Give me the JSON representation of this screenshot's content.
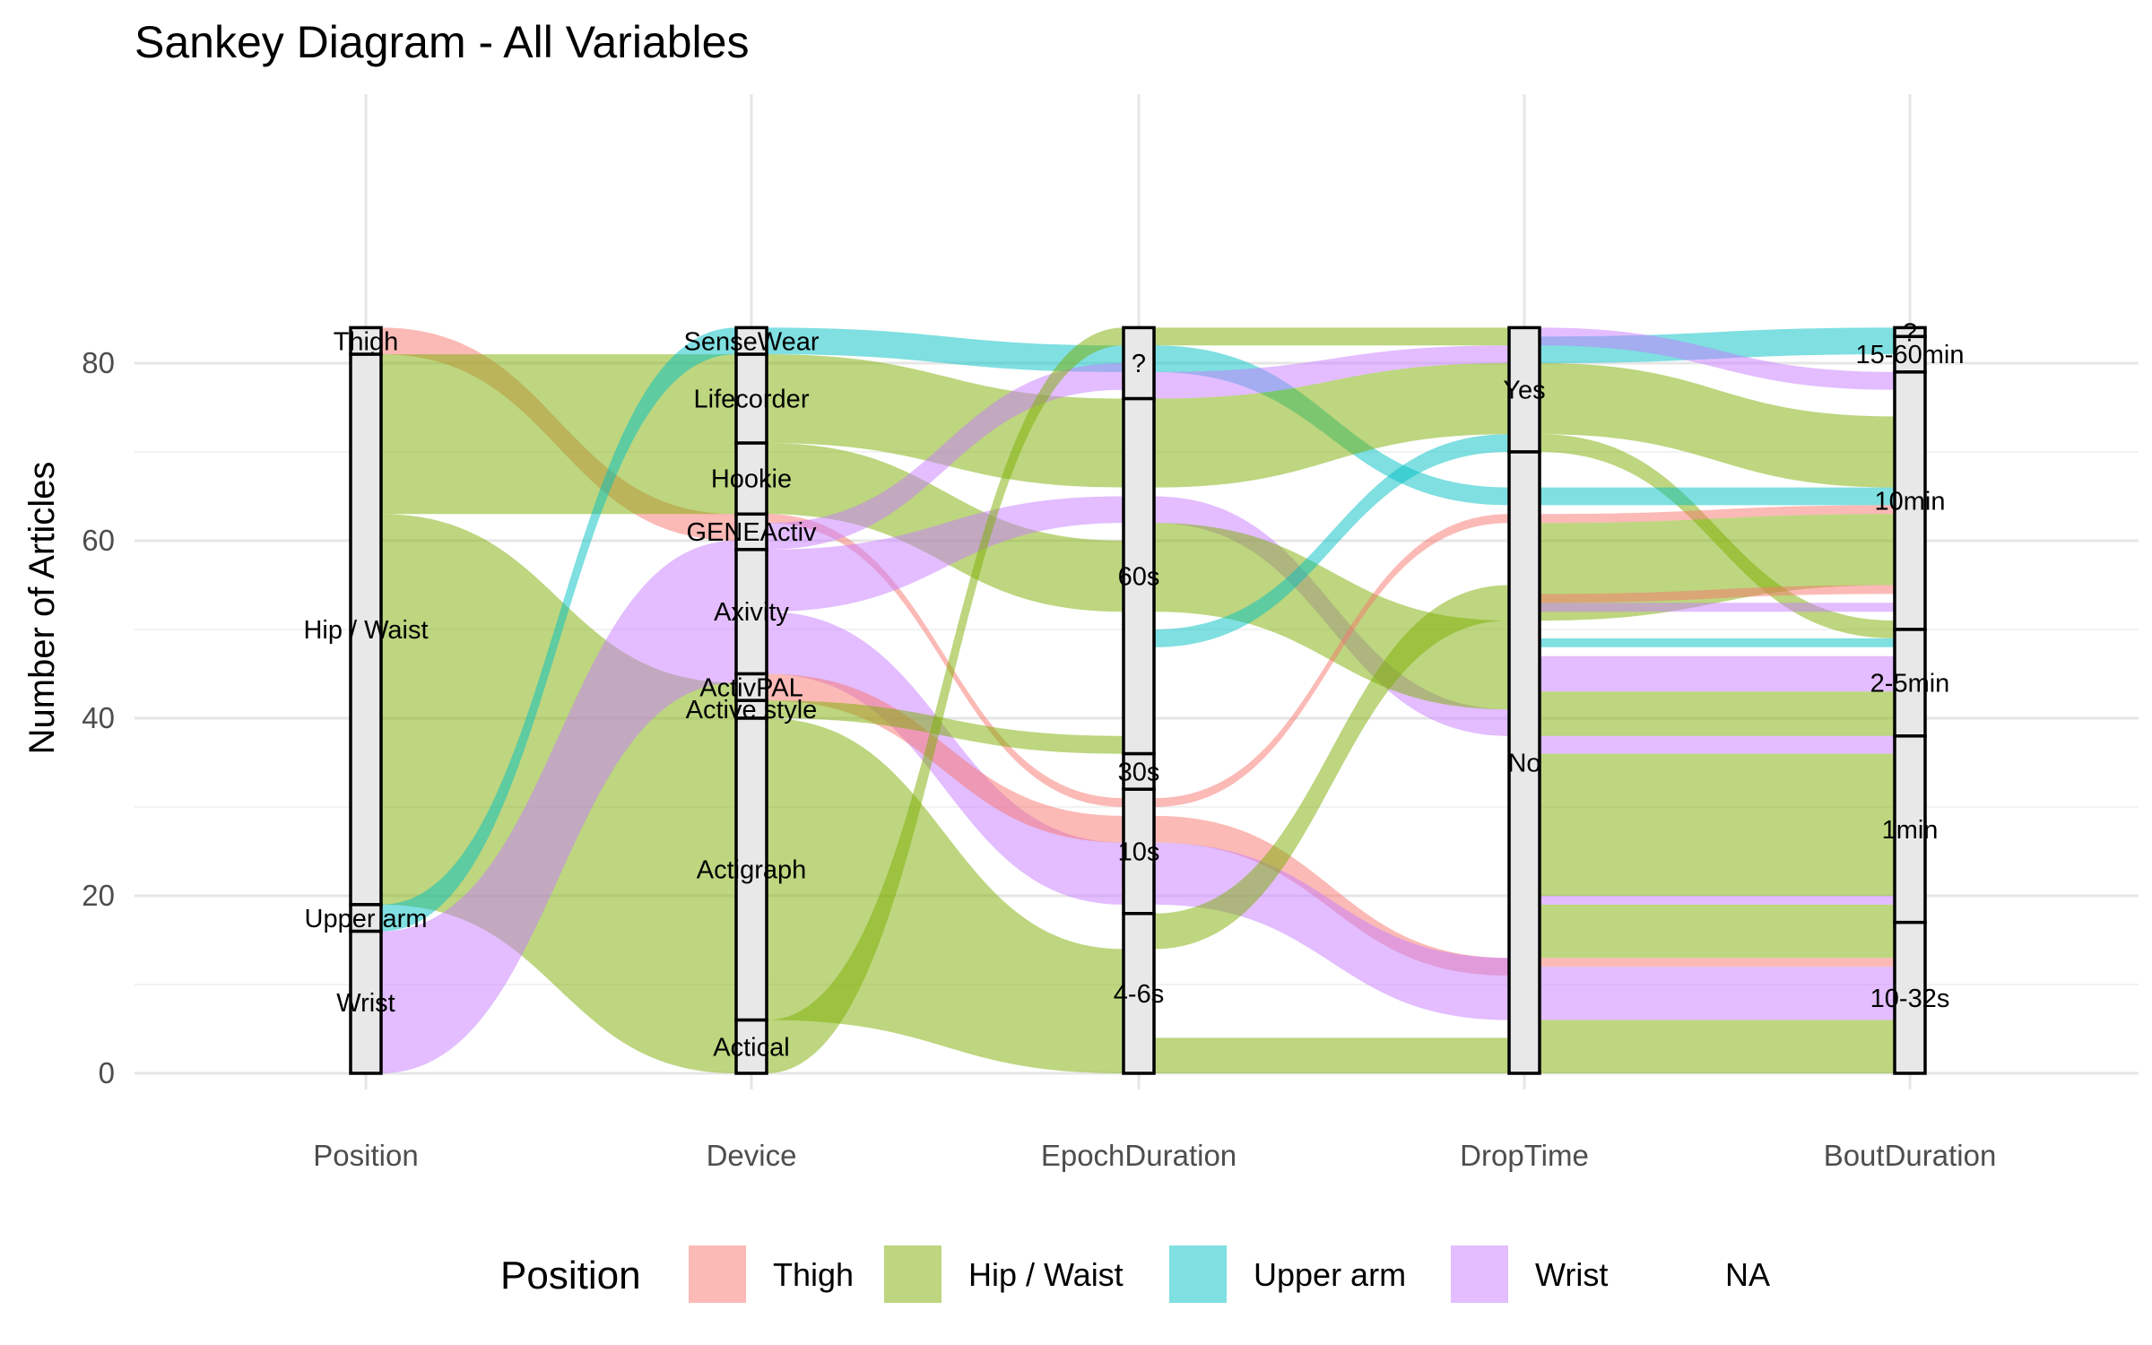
{
  "chart_data": {
    "type": "sankey",
    "title": "Sankey Diagram - All Variables",
    "ylabel": "Number of Articles",
    "xlabel": "",
    "ylim": [
      0,
      84
    ],
    "yticks": [
      0,
      20,
      40,
      60,
      80
    ],
    "grid": true,
    "legend_position": "bottom",
    "legend_title": "Position",
    "legend": [
      {
        "name": "Thigh",
        "color": "#F8766D"
      },
      {
        "name": "Hip / Waist",
        "color": "#7CAE00"
      },
      {
        "name": "Upper arm",
        "color": "#00BFC4"
      },
      {
        "name": "Wrist",
        "color": "#C77CFF"
      },
      {
        "name": "NA",
        "color": null
      }
    ],
    "axes": [
      {
        "name": "Position",
        "strata": [
          {
            "label": "Thigh",
            "min": 81,
            "max": 84
          },
          {
            "label": "Hip / Waist",
            "min": 19,
            "max": 81
          },
          {
            "label": "Upper arm",
            "min": 16,
            "max": 19
          },
          {
            "label": "Wrist",
            "min": 0,
            "max": 16
          }
        ]
      },
      {
        "name": "Device",
        "strata": [
          {
            "label": "SenseWear",
            "min": 81,
            "max": 84
          },
          {
            "label": "Lifecorder",
            "min": 71,
            "max": 81
          },
          {
            "label": "Hookie",
            "min": 63,
            "max": 71
          },
          {
            "label": "GENEActiv",
            "min": 59,
            "max": 63
          },
          {
            "label": "Axivity",
            "min": 45,
            "max": 59
          },
          {
            "label": "ActivPAL",
            "min": 42,
            "max": 45
          },
          {
            "label": "Active style",
            "min": 40,
            "max": 42
          },
          {
            "label": "Actigraph",
            "min": 6,
            "max": 40
          },
          {
            "label": "Actical",
            "min": 0,
            "max": 6
          }
        ]
      },
      {
        "name": "EpochDuration",
        "strata": [
          {
            "label": "?",
            "min": 76,
            "max": 84
          },
          {
            "label": "60s",
            "min": 36,
            "max": 76
          },
          {
            "label": "30s",
            "min": 32,
            "max": 36
          },
          {
            "label": "10s",
            "min": 18,
            "max": 32
          },
          {
            "label": "4-6s",
            "min": 0,
            "max": 18
          }
        ]
      },
      {
        "name": "DropTime",
        "strata": [
          {
            "label": "Yes",
            "min": 70,
            "max": 84
          },
          {
            "label": "No",
            "min": 0,
            "max": 70
          }
        ]
      },
      {
        "name": "BoutDuration",
        "strata": [
          {
            "label": "?",
            "min": 83,
            "max": 84
          },
          {
            "label": "15-60min",
            "min": 79,
            "max": 83
          },
          {
            "label": "10min",
            "min": 50,
            "max": 79
          },
          {
            "label": "2-5min",
            "min": 38,
            "max": 50
          },
          {
            "label": "1min",
            "min": 17,
            "max": 38
          },
          {
            "label": "10-32s",
            "min": 0,
            "max": 17
          }
        ]
      }
    ],
    "flows": [
      {
        "axis": 0,
        "group": "Thigh",
        "from": [
          81,
          84
        ],
        "to": [
          60,
          63
        ]
      },
      {
        "axis": 0,
        "group": "Hip / Waist",
        "from": [
          63,
          81
        ],
        "to": [
          63,
          81
        ]
      },
      {
        "axis": 0,
        "group": "Hip / Waist",
        "from": [
          19,
          63
        ],
        "to": [
          0,
          44
        ]
      },
      {
        "axis": 0,
        "group": "Upper arm",
        "from": [
          16,
          19
        ],
        "to": [
          81,
          84
        ]
      },
      {
        "axis": 0,
        "group": "Wrist",
        "from": [
          0,
          16
        ],
        "to": [
          44,
          60
        ]
      },
      {
        "axis": 1,
        "group": "Upper arm",
        "from": [
          81,
          84
        ],
        "to": [
          79,
          82
        ]
      },
      {
        "axis": 1,
        "group": "Hip / Waist",
        "from": [
          71,
          81
        ],
        "to": [
          66,
          76
        ]
      },
      {
        "axis": 1,
        "group": "Hip / Waist",
        "from": [
          63,
          71
        ],
        "to": [
          52,
          60
        ]
      },
      {
        "axis": 1,
        "group": "Thigh",
        "from": [
          62,
          63
        ],
        "to": [
          30,
          31
        ]
      },
      {
        "axis": 1,
        "group": "Wrist",
        "from": [
          59,
          62
        ],
        "to": [
          77,
          80
        ]
      },
      {
        "axis": 1,
        "group": "Wrist",
        "from": [
          52,
          59
        ],
        "to": [
          62,
          65
        ]
      },
      {
        "axis": 1,
        "group": "Wrist",
        "from": [
          45,
          52
        ],
        "to": [
          19,
          26
        ]
      },
      {
        "axis": 1,
        "group": "Thigh",
        "from": [
          42,
          45
        ],
        "to": [
          26,
          29
        ]
      },
      {
        "axis": 1,
        "group": "Hip / Waist",
        "from": [
          40,
          42
        ],
        "to": [
          36,
          38
        ]
      },
      {
        "axis": 1,
        "group": "Hip / Waist",
        "from": [
          6,
          40
        ],
        "to": [
          0,
          14
        ]
      },
      {
        "axis": 1,
        "group": "Hip / Waist",
        "from": [
          0,
          6
        ],
        "to": [
          82,
          84
        ]
      },
      {
        "axis": 2,
        "group": "Hip / Waist",
        "from": [
          82,
          84
        ],
        "to": [
          82,
          84
        ]
      },
      {
        "axis": 2,
        "group": "Upper arm",
        "from": [
          79,
          82
        ],
        "to": [
          64,
          66
        ]
      },
      {
        "axis": 2,
        "group": "Wrist",
        "from": [
          76,
          79
        ],
        "to": [
          80,
          82
        ]
      },
      {
        "axis": 2,
        "group": "Hip / Waist",
        "from": [
          66,
          76
        ],
        "to": [
          72,
          80
        ]
      },
      {
        "axis": 2,
        "group": "Wrist",
        "from": [
          62,
          65
        ],
        "to": [
          38,
          41
        ]
      },
      {
        "axis": 2,
        "group": "Hip / Waist",
        "from": [
          52,
          62
        ],
        "to": [
          41,
          51
        ]
      },
      {
        "axis": 2,
        "group": "Upper arm",
        "from": [
          48,
          50
        ],
        "to": [
          70,
          72
        ]
      },
      {
        "axis": 2,
        "group": "Thigh",
        "from": [
          30,
          31
        ],
        "to": [
          62,
          63
        ]
      },
      {
        "axis": 2,
        "group": "Thigh",
        "from": [
          26,
          29
        ],
        "to": [
          11,
          13
        ]
      },
      {
        "axis": 2,
        "group": "Wrist",
        "from": [
          19,
          26
        ],
        "to": [
          6,
          13
        ]
      },
      {
        "axis": 2,
        "group": "Hip / Waist",
        "from": [
          14,
          18
        ],
        "to": [
          51,
          55
        ]
      },
      {
        "axis": 2,
        "group": "Hip / Waist",
        "from": [
          0,
          4
        ],
        "to": [
          0,
          4
        ]
      },
      {
        "axis": 3,
        "group": "Upper arm",
        "from": [
          80,
          83
        ],
        "to": [
          81,
          84
        ]
      },
      {
        "axis": 3,
        "group": "Wrist",
        "from": [
          82,
          84
        ],
        "to": [
          77,
          79
        ]
      },
      {
        "axis": 3,
        "group": "Hip / Waist",
        "from": [
          72,
          80
        ],
        "to": [
          66,
          74
        ]
      },
      {
        "axis": 3,
        "group": "Hip / Waist",
        "from": [
          70,
          72
        ],
        "to": [
          49,
          51
        ]
      },
      {
        "axis": 3,
        "group": "Upper arm",
        "from": [
          64,
          66
        ],
        "to": [
          64,
          66
        ]
      },
      {
        "axis": 3,
        "group": "Thigh",
        "from": [
          62,
          63
        ],
        "to": [
          63,
          64
        ]
      },
      {
        "axis": 3,
        "group": "Hip / Waist",
        "from": [
          51,
          62
        ],
        "to": [
          55,
          63
        ]
      },
      {
        "axis": 3,
        "group": "Thigh",
        "from": [
          53,
          54
        ],
        "to": [
          54,
          55
        ]
      },
      {
        "axis": 3,
        "group": "Wrist",
        "from": [
          52,
          53
        ],
        "to": [
          52,
          53
        ]
      },
      {
        "axis": 3,
        "group": "Upper arm",
        "from": [
          48,
          49
        ],
        "to": [
          48,
          49
        ]
      },
      {
        "axis": 3,
        "group": "Wrist",
        "from": [
          43,
          47
        ],
        "to": [
          43,
          47
        ]
      },
      {
        "axis": 3,
        "group": "Hip / Waist",
        "from": [
          38,
          43
        ],
        "to": [
          38,
          43
        ]
      },
      {
        "axis": 3,
        "group": "Wrist",
        "from": [
          36,
          38
        ],
        "to": [
          36,
          38
        ]
      },
      {
        "axis": 3,
        "group": "Hip / Waist",
        "from": [
          20,
          36
        ],
        "to": [
          20,
          36
        ]
      },
      {
        "axis": 3,
        "group": "Wrist",
        "from": [
          19,
          20
        ],
        "to": [
          19,
          20
        ]
      },
      {
        "axis": 3,
        "group": "Hip / Waist",
        "from": [
          13,
          19
        ],
        "to": [
          13,
          19
        ]
      },
      {
        "axis": 3,
        "group": "Thigh",
        "from": [
          12,
          13
        ],
        "to": [
          12,
          13
        ]
      },
      {
        "axis": 3,
        "group": "Wrist",
        "from": [
          6,
          12
        ],
        "to": [
          6,
          12
        ]
      },
      {
        "axis": 3,
        "group": "Hip / Waist",
        "from": [
          0,
          6
        ],
        "to": [
          0,
          6
        ]
      }
    ]
  }
}
